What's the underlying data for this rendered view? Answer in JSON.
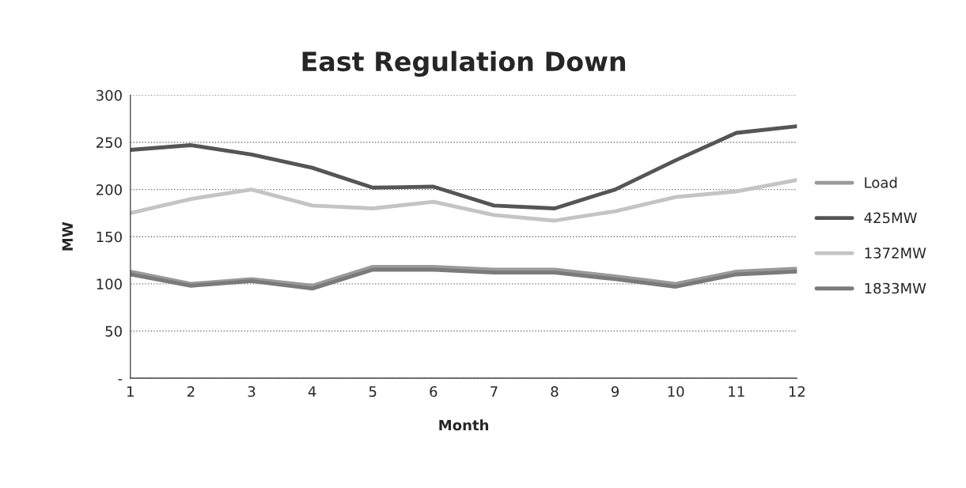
{
  "chart_data": {
    "type": "line",
    "title": "East Regulation Down",
    "xlabel": "Month",
    "ylabel": "MW",
    "x": [
      1,
      2,
      3,
      4,
      5,
      6,
      7,
      8,
      9,
      10,
      11,
      12
    ],
    "series": [
      {
        "name": "Load",
        "color": "#9a9a9a",
        "values": [
          113,
          100,
          105,
          98,
          118,
          118,
          115,
          115,
          108,
          100,
          113,
          116
        ]
      },
      {
        "name": "425MW",
        "color": "#555555",
        "values": [
          242,
          247,
          237,
          223,
          202,
          203,
          183,
          180,
          200,
          231,
          260,
          267
        ]
      },
      {
        "name": "1372MW",
        "color": "#c4c4c4",
        "values": [
          175,
          190,
          200,
          183,
          180,
          187,
          173,
          167,
          177,
          192,
          198,
          210
        ]
      },
      {
        "name": "1833MW",
        "color": "#7a7a7a",
        "values": [
          110,
          98,
          103,
          95,
          115,
          115,
          112,
          112,
          105,
          97,
          110,
          113
        ]
      }
    ],
    "xlim": [
      1,
      12
    ],
    "xticks": [
      1,
      2,
      3,
      4,
      5,
      6,
      7,
      8,
      9,
      10,
      11,
      12
    ],
    "ylim": [
      0,
      300
    ],
    "yticks": [
      {
        "value": 0,
        "label": "-"
      },
      50,
      100,
      150,
      200,
      250,
      300
    ],
    "grid": "y",
    "legend": "right",
    "marker": "none",
    "line_style": "solid"
  }
}
